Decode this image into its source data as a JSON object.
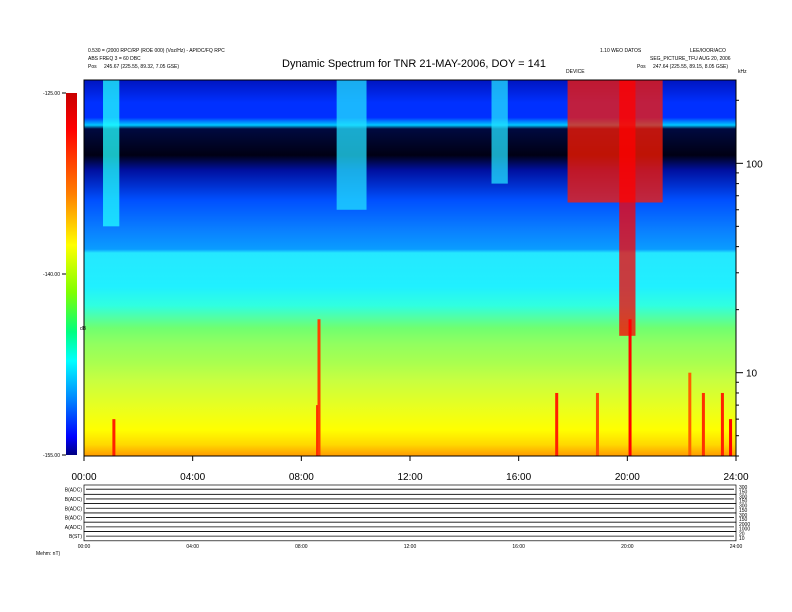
{
  "header": {
    "line1": "0.530 = (2000 RPC/RP (ROE 000) (Voz/Hz) - APIDC/FQ RPC",
    "line2": "ABS FREQ 3 = 60 DBC",
    "line3_label": "Pos",
    "line3_value": "245.67 (225.55, 89.32, 7.05 GSE)",
    "right1": "1.10 WEO DATOS",
    "right2": "LEE/IOOR/ACO",
    "right3": "SEG_PICTURE_TFU AUG 20, 2006",
    "right4_label": "Pos",
    "right4_value": "247.64 (225.55, 89.15, 8.05 GSE)",
    "mark1": "DEVICE",
    "right_axis_unit": "kHz"
  },
  "chart_data": {
    "type": "heatmap",
    "title": "Dynamic Spectrum for TNR 21-MAY-2006, DOY = 141",
    "x_ticks": [
      "00:00",
      "04:00",
      "08:00",
      "12:00",
      "16:00",
      "20:00",
      "24:00"
    ],
    "xlim": [
      0,
      24
    ],
    "y_scale": "log",
    "ylim": [
      4,
      250
    ],
    "y_ticks": [
      10,
      100
    ],
    "y_tick_labels": [
      "10",
      "100"
    ],
    "colorbar": {
      "label": "dB",
      "range": [
        -155.0,
        -125.0
      ],
      "ticks": [
        -125.0,
        -140.0,
        -155.0
      ],
      "tick_labels": [
        "-125.00",
        "-140.00",
        "-155.00"
      ],
      "colors": [
        "#c80000",
        "#ff0000",
        "#ff8000",
        "#ffff00",
        "#80ff00",
        "#00ff80",
        "#00ffff",
        "#0080ff",
        "#0000ff",
        "#000080"
      ]
    },
    "background_colors": [
      "#0015c0",
      "#000014",
      "#0050ff",
      "#20f0ff",
      "#90ff60",
      "#ffff00",
      "#ff9a00"
    ],
    "emission_events": [
      {
        "start_hour": 17.8,
        "end_hour": 21.3,
        "freq_min": 65,
        "freq_max": 250,
        "color": "#ff1a00"
      },
      {
        "start_hour": 19.7,
        "end_hour": 20.3,
        "freq_min": 15,
        "freq_max": 250,
        "color": "#ff0000"
      },
      {
        "start_hour": 0.7,
        "end_hour": 1.3,
        "freq_min": 50,
        "freq_max": 250,
        "color": "#22ffff"
      },
      {
        "start_hour": 9.3,
        "end_hour": 10.4,
        "freq_min": 60,
        "freq_max": 250,
        "color": "#22e0ff"
      },
      {
        "start_hour": 15.0,
        "end_hour": 15.6,
        "freq_min": 80,
        "freq_max": 250,
        "color": "#22e0ff"
      }
    ],
    "bursts": [
      {
        "hour": 1.1,
        "freq_top": 6,
        "color": "#ff2000"
      },
      {
        "hour": 8.6,
        "freq_top": 7,
        "color": "#ff2000"
      },
      {
        "hour": 8.65,
        "freq_top": 18,
        "color": "#ff4000"
      },
      {
        "hour": 17.4,
        "freq_top": 8,
        "color": "#ff2000"
      },
      {
        "hour": 18.9,
        "freq_top": 8,
        "color": "#ff5000"
      },
      {
        "hour": 20.1,
        "freq_top": 18,
        "color": "#ff0000"
      },
      {
        "hour": 22.8,
        "freq_top": 8,
        "color": "#ff3000"
      },
      {
        "hour": 23.5,
        "freq_top": 8,
        "color": "#ff2000"
      },
      {
        "hour": 23.8,
        "freq_top": 6,
        "color": "#ff0000"
      },
      {
        "hour": 22.3,
        "freq_top": 10,
        "color": "#ff6000"
      }
    ],
    "bottom_panels": {
      "x_ticks": [
        "00:00",
        "04:00",
        "08:00",
        "12:00",
        "16:00",
        "20:00",
        "24:00"
      ],
      "rows": [
        {
          "label": "B(ADC)",
          "right_ticks": [
            "300",
            "150"
          ],
          "level": 0.55
        },
        {
          "label": "B(ADC)",
          "right_ticks": [
            "300",
            "150"
          ],
          "level": 0.5
        },
        {
          "label": "B(ADC)",
          "right_ticks": [
            "300",
            "150"
          ],
          "level": 0.5
        },
        {
          "label": "B(ADC)",
          "right_ticks": [
            "300",
            "150"
          ],
          "level": 0.5
        },
        {
          "label": "A(ADC)",
          "right_ticks": [
            "2000",
            "1000"
          ],
          "level": 0.5
        },
        {
          "label": "B(ST)",
          "right_ticks": [
            "20",
            "10"
          ],
          "level": 0.5
        }
      ],
      "footer": "Mehm: nT)"
    }
  }
}
